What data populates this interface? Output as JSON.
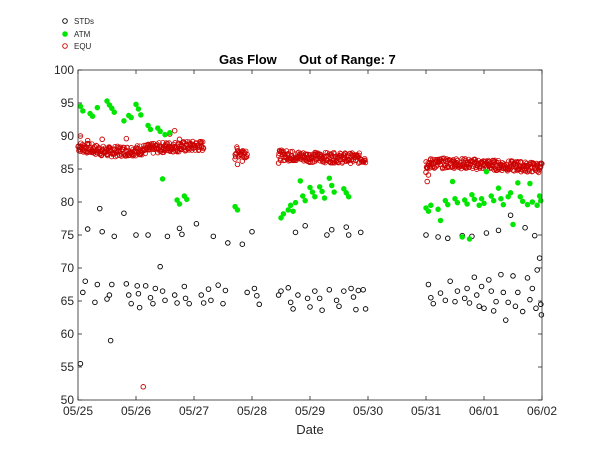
{
  "chart_data": {
    "type": "scatter",
    "title_left": "Gas Flow",
    "title_right": "Out of Range: 7",
    "xlabel": "Date",
    "ylabel": "",
    "x_ticks": [
      "05/25",
      "05/26",
      "05/27",
      "05/28",
      "05/29",
      "05/30",
      "05/31",
      "06/01",
      "06/02"
    ],
    "y_ticks": [
      "50",
      "55",
      "60",
      "65",
      "70",
      "75",
      "80",
      "85",
      "90",
      "95",
      "100"
    ],
    "ylim": [
      50,
      100
    ],
    "grid": false,
    "legend_placement": "top-left, outside plot",
    "series": [
      {
        "name": "STDs",
        "color": "#000000",
        "marker": "open-circle",
        "points": [
          [
            "05/25 01:00",
            55.5
          ],
          [
            "05/25 02:00",
            66.3
          ],
          [
            "05/25 03:00",
            68
          ],
          [
            "05/25 04:00",
            75.9
          ],
          [
            "05/25 07:00",
            64.8
          ],
          [
            "05/25 08:00",
            67.5
          ],
          [
            "05/25 09:00",
            79
          ],
          [
            "05/25 10:00",
            75.5
          ],
          [
            "05/25 12:00",
            65.3
          ],
          [
            "05/25 13:00",
            65.9
          ],
          [
            "05/25 13:30",
            59
          ],
          [
            "05/25 14:00",
            67.5
          ],
          [
            "05/25 15:00",
            74.8
          ],
          [
            "05/25 19:00",
            78.3
          ],
          [
            "05/25 20:00",
            67.6
          ],
          [
            "05/25 21:00",
            65.9
          ],
          [
            "05/25 22:00",
            64.6
          ],
          [
            "05/26 00:00",
            75
          ],
          [
            "05/26 00:30",
            67.3
          ],
          [
            "05/26 01:00",
            66.1
          ],
          [
            "05/26 01:30",
            64
          ],
          [
            "05/26 04:00",
            67.3
          ],
          [
            "05/26 05:00",
            75
          ],
          [
            "05/26 06:00",
            65.5
          ],
          [
            "05/26 07:00",
            64.6
          ],
          [
            "05/26 08:00",
            66.9
          ],
          [
            "05/26 10:00",
            70.2
          ],
          [
            "05/26 11:00",
            66.5
          ],
          [
            "05/26 12:00",
            65.1
          ],
          [
            "05/26 13:00",
            74.8
          ],
          [
            "05/26 16:00",
            65.9
          ],
          [
            "05/26 17:00",
            64.7
          ],
          [
            "05/26 18:00",
            76
          ],
          [
            "05/26 19:00",
            75.1
          ],
          [
            "05/26 20:00",
            67.2
          ],
          [
            "05/26 20:30",
            65.4
          ],
          [
            "05/26 22:00",
            64.6
          ],
          [
            "05/27 01:00",
            76.7
          ],
          [
            "05/27 03:00",
            65.9
          ],
          [
            "05/27 04:00",
            64.7
          ],
          [
            "05/27 06:00",
            66.8
          ],
          [
            "05/27 07:00",
            65.1
          ],
          [
            "05/27 08:00",
            74.8
          ],
          [
            "05/27 10:00",
            67.4
          ],
          [
            "05/27 12:00",
            64.6
          ],
          [
            "05/27 13:00",
            66.6
          ],
          [
            "05/27 14:00",
            73.8
          ],
          [
            "05/27 20:00",
            73.6
          ],
          [
            "05/27 22:00",
            66.3
          ],
          [
            "05/28 00:00",
            75.5
          ],
          [
            "05/28 01:00",
            66.9
          ],
          [
            "05/28 02:00",
            65.8
          ],
          [
            "05/28 03:00",
            64.5
          ],
          [
            "05/28 11:00",
            65.9
          ],
          [
            "05/28 12:00",
            66.5
          ],
          [
            "05/28 15:00",
            67
          ],
          [
            "05/28 16:00",
            64.8
          ],
          [
            "05/28 17:00",
            63.8
          ],
          [
            "05/28 18:00",
            75.4
          ],
          [
            "05/28 19:00",
            65.9
          ],
          [
            "05/28 22:00",
            76.4
          ],
          [
            "05/28 23:00",
            65.4
          ],
          [
            "05/29 00:00",
            64.1
          ],
          [
            "05/29 02:00",
            66.5
          ],
          [
            "05/29 04:00",
            65.4
          ],
          [
            "05/29 05:00",
            63.6
          ],
          [
            "05/29 07:00",
            75
          ],
          [
            "05/29 08:00",
            66.7
          ],
          [
            "05/29 09:00",
            75.8
          ],
          [
            "05/29 11:00",
            65.1
          ],
          [
            "05/29 12:00",
            64.2
          ],
          [
            "05/29 14:00",
            66.5
          ],
          [
            "05/29 15:00",
            76.2
          ],
          [
            "05/29 16:00",
            75
          ],
          [
            "05/29 17:00",
            66.9
          ],
          [
            "05/29 18:00",
            65.6
          ],
          [
            "05/29 19:00",
            63.7
          ],
          [
            "05/29 20:00",
            66.6
          ],
          [
            "05/29 21:00",
            75.4
          ],
          [
            "05/29 22:00",
            66.7
          ],
          [
            "05/29 23:00",
            63.8
          ],
          [
            "05/31 00:00",
            75
          ],
          [
            "05/31 01:00",
            67.5
          ],
          [
            "05/31 02:00",
            65.5
          ],
          [
            "05/31 03:00",
            64.6
          ],
          [
            "05/31 05:00",
            74.7
          ],
          [
            "05/31 06:00",
            66.2
          ],
          [
            "05/31 08:00",
            65.1
          ],
          [
            "05/31 09:00",
            74.5
          ],
          [
            "05/31 10:00",
            68
          ],
          [
            "05/31 12:00",
            64.9
          ],
          [
            "05/31 13:00",
            66.5
          ],
          [
            "05/31 15:00",
            74.9
          ],
          [
            "05/31 16:00",
            65.4
          ],
          [
            "05/31 17:00",
            66.9
          ],
          [
            "05/31 18:00",
            64.7
          ],
          [
            "05/31 19:00",
            74.8
          ],
          [
            "05/31 20:00",
            68.6
          ],
          [
            "05/31 21:00",
            65.9
          ],
          [
            "05/31 22:00",
            64.2
          ],
          [
            "05/31 23:00",
            67.2
          ],
          [
            "06/01 00:00",
            63.9
          ],
          [
            "06/01 01:00",
            75.3
          ],
          [
            "06/01 02:00",
            68.2
          ],
          [
            "06/01 03:00",
            66.5
          ],
          [
            "06/01 04:00",
            63.5
          ],
          [
            "06/01 05:00",
            64.9
          ],
          [
            "06/01 06:00",
            75.7
          ],
          [
            "06/01 07:00",
            69
          ],
          [
            "06/01 08:00",
            66.3
          ],
          [
            "06/01 09:00",
            62.1
          ],
          [
            "06/01 10:00",
            64.8
          ],
          [
            "06/01 11:00",
            78
          ],
          [
            "06/01 12:00",
            68.8
          ],
          [
            "06/01 13:00",
            64.2
          ],
          [
            "06/01 14:00",
            66.3
          ],
          [
            "06/01 16:00",
            63.4
          ],
          [
            "06/01 17:00",
            76.1
          ],
          [
            "06/01 18:00",
            68.5
          ],
          [
            "06/01 19:00",
            65.2
          ],
          [
            "06/01 20:00",
            66.9
          ],
          [
            "06/01 21:00",
            74.9
          ],
          [
            "06/01 21:30",
            63.9
          ],
          [
            "06/01 22:00",
            69.7
          ],
          [
            "06/01 23:00",
            71.5
          ],
          [
            "06/01 23:30",
            64.5
          ],
          [
            "06/01 23:45",
            62.9
          ]
        ]
      },
      {
        "name": "ATM",
        "color": "#00e600",
        "marker": "filled-circle",
        "points": [
          [
            "05/25 01:00",
            94.5
          ],
          [
            "05/25 02:00",
            93.8
          ],
          [
            "05/25 05:00",
            93.4
          ],
          [
            "05/25 06:00",
            93
          ],
          [
            "05/25 08:00",
            94.3
          ],
          [
            "05/25 12:00",
            95.3
          ],
          [
            "05/25 13:00",
            94.7
          ],
          [
            "05/25 14:00",
            94.2
          ],
          [
            "05/25 15:00",
            93.6
          ],
          [
            "05/25 19:00",
            92.3
          ],
          [
            "05/25 21:00",
            93.1
          ],
          [
            "05/25 22:00",
            92.8
          ],
          [
            "05/26 00:00",
            94.8
          ],
          [
            "05/26 01:00",
            94.1
          ],
          [
            "05/26 02:00",
            93.2
          ],
          [
            "05/26 05:00",
            91.6
          ],
          [
            "05/26 06:00",
            91
          ],
          [
            "05/26 09:00",
            91.2
          ],
          [
            "05/26 10:00",
            90.7
          ],
          [
            "05/26 11:00",
            83.5
          ],
          [
            "05/26 12:00",
            90.2
          ],
          [
            "05/26 14:00",
            90.5
          ],
          [
            "05/26 17:00",
            80.3
          ],
          [
            "05/26 18:00",
            79.7
          ],
          [
            "05/26 20:00",
            80.9
          ],
          [
            "05/26 21:00",
            80.4
          ],
          [
            "05/27 17:00",
            79.3
          ],
          [
            "05/27 18:00",
            78.8
          ],
          [
            "05/28 12:00",
            77.6
          ],
          [
            "05/28 13:00",
            78.2
          ],
          [
            "05/28 15:00",
            78.8
          ],
          [
            "05/28 16:00",
            79.5
          ],
          [
            "05/28 17:00",
            78.6
          ],
          [
            "05/28 18:00",
            79.9
          ],
          [
            "05/28 20:00",
            83.2
          ],
          [
            "05/28 21:00",
            80.9
          ],
          [
            "05/28 22:00",
            80.2
          ],
          [
            "05/29 00:00",
            82.2
          ],
          [
            "05/29 01:00",
            81.5
          ],
          [
            "05/29 02:00",
            80.8
          ],
          [
            "05/29 04:00",
            82.3
          ],
          [
            "05/29 05:00",
            81.6
          ],
          [
            "05/29 06:00",
            80.6
          ],
          [
            "05/29 08:00",
            83.6
          ],
          [
            "05/29 09:00",
            82.5
          ],
          [
            "05/29 10:00",
            81.5
          ],
          [
            "05/29 14:00",
            82
          ],
          [
            "05/29 15:00",
            81.4
          ],
          [
            "05/29 16:00",
            80.8
          ],
          [
            "05/31 00:00",
            79.1
          ],
          [
            "05/31 01:00",
            78.6
          ],
          [
            "05/31 02:00",
            79.5
          ],
          [
            "05/31 05:00",
            78.9
          ],
          [
            "05/31 06:00",
            77.2
          ],
          [
            "05/31 08:00",
            80.2
          ],
          [
            "05/31 09:00",
            79.6
          ],
          [
            "05/31 11:00",
            83.1
          ],
          [
            "05/31 12:00",
            80.5
          ],
          [
            "05/31 13:00",
            79.9
          ],
          [
            "05/31 15:00",
            74.7
          ],
          [
            "05/31 16:00",
            80.3
          ],
          [
            "05/31 17:00",
            79.7
          ],
          [
            "05/31 18:00",
            74.4
          ],
          [
            "05/31 19:00",
            81.1
          ],
          [
            "05/31 20:00",
            80.4
          ],
          [
            "05/31 22:00",
            79.5
          ],
          [
            "05/31 23:00",
            80.5
          ],
          [
            "06/01 00:00",
            79.8
          ],
          [
            "06/01 01:00",
            84.6
          ],
          [
            "06/01 03:00",
            80.9
          ],
          [
            "06/01 04:00",
            80.2
          ],
          [
            "06/01 06:00",
            82.1
          ],
          [
            "06/01 07:00",
            80.5
          ],
          [
            "06/01 08:00",
            79.6
          ],
          [
            "06/01 10:00",
            80.8
          ],
          [
            "06/01 11:00",
            81.4
          ],
          [
            "06/01 12:00",
            76.6
          ],
          [
            "06/01 14:00",
            82.9
          ],
          [
            "06/01 15:00",
            80.8
          ],
          [
            "06/01 16:00",
            80.1
          ],
          [
            "06/01 18:00",
            79.6
          ],
          [
            "06/01 19:00",
            82.8
          ],
          [
            "06/01 20:00",
            80
          ],
          [
            "06/01 22:00",
            79.5
          ],
          [
            "06/01 23:00",
            80.9
          ],
          [
            "06/01 23:30",
            80.2
          ]
        ]
      },
      {
        "name": "EQU",
        "color": "#cc0000",
        "marker": "open-circle",
        "band_segments": [
          {
            "from": "05/25 00:00",
            "to": "05/25 12:00",
            "levels": [
              88.4,
              87.6
            ]
          },
          {
            "from": "05/25 12:00",
            "to": "05/26 00:00",
            "levels": [
              87.6,
              87.8
            ]
          },
          {
            "from": "05/26 00:00",
            "to": "05/26 12:00",
            "levels": [
              87.8,
              88.3
            ]
          },
          {
            "from": "05/26 12:00",
            "to": "05/27 04:00",
            "levels": [
              88.3,
              88.5
            ]
          },
          {
            "from": "05/27 17:00",
            "to": "05/27 22:00",
            "levels": [
              87.6,
              87.5
            ]
          },
          {
            "from": "05/28 11:00",
            "to": "05/29 00:00",
            "levels": [
              87.1,
              86.8
            ]
          },
          {
            "from": "05/29 00:00",
            "to": "05/29 23:00",
            "levels": [
              86.8,
              86.6
            ]
          },
          {
            "from": "05/31 00:00",
            "to": "05/31 12:00",
            "levels": [
              85.8,
              85.9
            ]
          },
          {
            "from": "05/31 12:00",
            "to": "06/02 00:00",
            "levels": [
              85.9,
              85.2
            ]
          }
        ],
        "points": [
          [
            "05/26 03:00",
            52
          ],
          [
            "05/25 01:00",
            90
          ],
          [
            "05/25 04:00",
            89.3
          ],
          [
            "05/25 10:00",
            89.5
          ],
          [
            "05/25 20:00",
            89.6
          ],
          [
            "05/26 14:00",
            90.3
          ],
          [
            "05/26 16:00",
            90.8
          ],
          [
            "05/26 18:00",
            89.5
          ],
          [
            "05/27 17:00",
            86.5
          ],
          [
            "05/27 18:00",
            85.7
          ],
          [
            "05/27 20:00",
            86.2
          ],
          [
            "05/28 11:00",
            85.9
          ],
          [
            "05/31 00:00",
            84.5
          ],
          [
            "05/31 00:30",
            83.1
          ],
          [
            "05/31 01:00",
            84.1
          ],
          [
            "05/28 16:00",
            87.6
          ],
          [
            "05/29 10:00",
            87.3
          ],
          [
            "05/31 04:00",
            86.4
          ],
          [
            "06/01 14:00",
            86.1
          ],
          [
            "06/01 23:00",
            85.3
          ]
        ]
      }
    ]
  }
}
